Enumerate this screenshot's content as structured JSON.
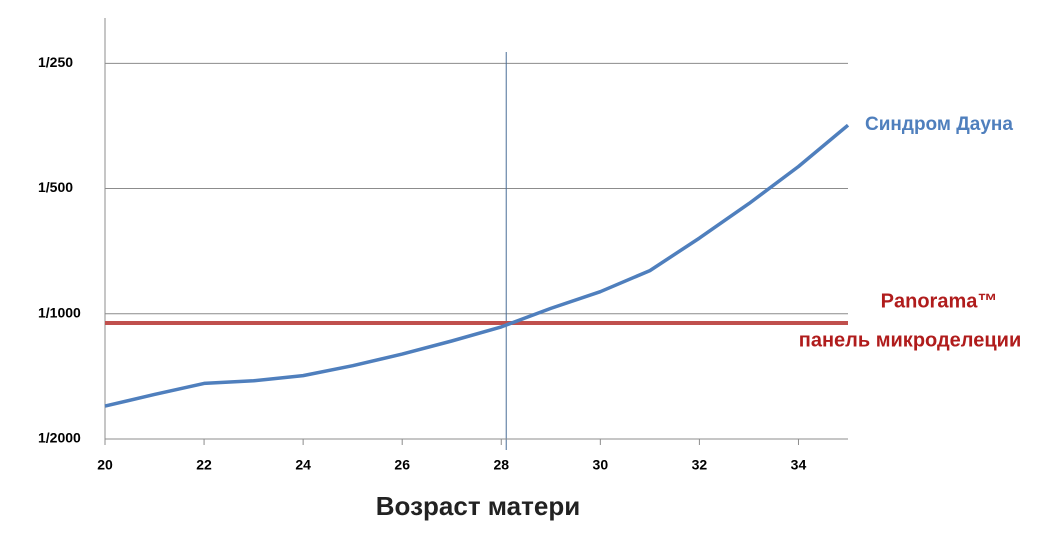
{
  "chart_data": {
    "type": "line",
    "x_label": "Возраст матери",
    "x": [
      20,
      21,
      22,
      23,
      24,
      25,
      26,
      27,
      28,
      29,
      30,
      31,
      32,
      33,
      34,
      35
    ],
    "series": [
      {
        "name": "Синдром Дауна",
        "color": "#4f7fbd",
        "values": [
          0.0006,
          0.00064,
          0.00068,
          0.00069,
          0.00071,
          0.00075,
          0.0008,
          0.00086,
          0.00093,
          0.00103,
          0.00113,
          0.00127,
          0.00152,
          0.00184,
          0.00226,
          0.00284
        ]
      },
      {
        "name": "Panorama™",
        "color": "#c0504d",
        "values": [
          0.00095,
          0.00095,
          0.00095,
          0.00095,
          0.00095,
          0.00095,
          0.00095,
          0.00095,
          0.00095,
          0.00095,
          0.00095,
          0.00095,
          0.00095,
          0.00095,
          0.00095,
          0.00095
        ]
      }
    ],
    "annotations": [
      "панель микроделеции"
    ],
    "vline": 28.1,
    "xlim": [
      20,
      35
    ],
    "xticks": [
      20,
      22,
      24,
      26,
      28,
      30,
      32,
      34
    ],
    "ylim": [
      0.0005,
      0.005
    ],
    "yticks": [
      {
        "value": 0.0005,
        "label": "1/2000"
      },
      {
        "value": 0.001,
        "label": "1/1000"
      },
      {
        "value": 0.002,
        "label": "1/500"
      },
      {
        "value": 0.004,
        "label": "1/250"
      }
    ],
    "log_scale_y": true,
    "grid": true
  }
}
